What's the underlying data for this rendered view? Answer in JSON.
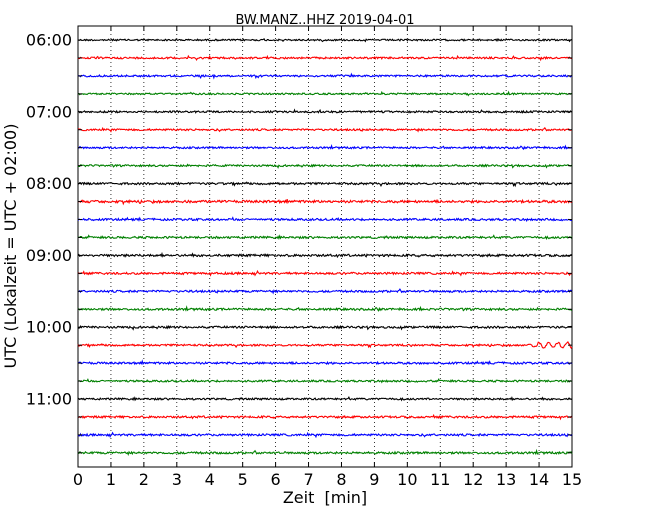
{
  "chart_data": {
    "type": "line",
    "title": "BW.MANZ..HHZ 2019-04-01",
    "xlabel": "Zeit  [min]",
    "ylabel": "UTC (Lokalzeit = UTC + 02:00)",
    "xlim": [
      0,
      15
    ],
    "x_ticks": [
      "0",
      "1",
      "2",
      "3",
      "4",
      "5",
      "6",
      "7",
      "8",
      "9",
      "10",
      "11",
      "12",
      "13",
      "14",
      "15"
    ],
    "y_tick_labels": [
      "06:00",
      "07:00",
      "08:00",
      "09:00",
      "10:00",
      "11:00"
    ],
    "grid": "vertical dotted",
    "row_interval_minutes": 15,
    "series_colors": [
      "#000000",
      "#ff0000",
      "#0000ff",
      "#008000"
    ],
    "traces": [
      {
        "start": "06:00",
        "color": "#000000",
        "noise": 0.8
      },
      {
        "start": "06:15",
        "color": "#ff0000",
        "noise": 0.9
      },
      {
        "start": "06:30",
        "color": "#0000ff",
        "noise": 0.9
      },
      {
        "start": "06:45",
        "color": "#008000",
        "noise": 0.8
      },
      {
        "start": "07:00",
        "color": "#000000",
        "noise": 0.9
      },
      {
        "start": "07:15",
        "color": "#ff0000",
        "noise": 0.9
      },
      {
        "start": "07:30",
        "color": "#0000ff",
        "noise": 0.9
      },
      {
        "start": "07:45",
        "color": "#008000",
        "noise": 0.9
      },
      {
        "start": "08:00",
        "color": "#000000",
        "noise": 1.0
      },
      {
        "start": "08:15",
        "color": "#ff0000",
        "noise": 1.2
      },
      {
        "start": "08:30",
        "color": "#0000ff",
        "noise": 1.0
      },
      {
        "start": "08:45",
        "color": "#008000",
        "noise": 1.0
      },
      {
        "start": "09:00",
        "color": "#000000",
        "noise": 1.1
      },
      {
        "start": "09:15",
        "color": "#ff0000",
        "noise": 1.0
      },
      {
        "start": "09:30",
        "color": "#0000ff",
        "noise": 1.0
      },
      {
        "start": "09:45",
        "color": "#008000",
        "noise": 1.0
      },
      {
        "start": "10:00",
        "color": "#000000",
        "noise": 1.0
      },
      {
        "start": "10:15",
        "color": "#ff0000",
        "noise": 0.9,
        "event_start_min": 13.5,
        "event_amplitude": 2.6
      },
      {
        "start": "10:30",
        "color": "#0000ff",
        "noise": 1.0
      },
      {
        "start": "10:45",
        "color": "#008000",
        "noise": 0.9
      },
      {
        "start": "11:00",
        "color": "#000000",
        "noise": 0.9
      },
      {
        "start": "11:15",
        "color": "#ff0000",
        "noise": 1.0
      },
      {
        "start": "11:30",
        "color": "#0000ff",
        "noise": 1.0
      },
      {
        "start": "11:45",
        "color": "#008000",
        "noise": 1.0
      }
    ]
  }
}
